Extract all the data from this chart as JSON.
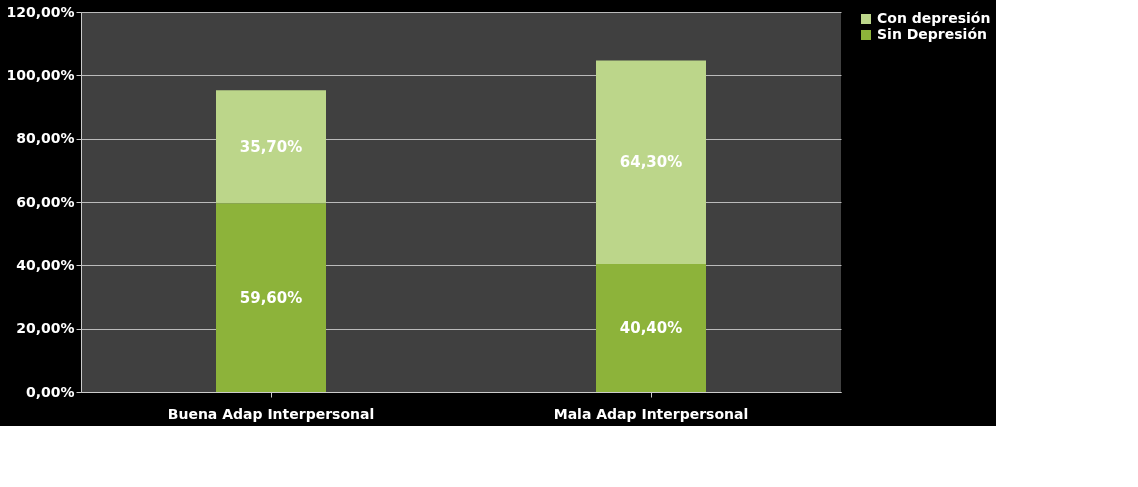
{
  "chart_data": {
    "type": "bar",
    "stacked": true,
    "categories": [
      "Buena Adap Interpersonal",
      "Mala Adap Interpersonal"
    ],
    "series": [
      {
        "name": "Sin Depresión",
        "color": "#8db33a",
        "values": [
          59.6,
          40.4
        ],
        "value_labels": [
          "59,60%",
          "40,40%"
        ]
      },
      {
        "name": "Con depresión",
        "color": "#bcd68a",
        "values": [
          35.7,
          64.3
        ],
        "value_labels": [
          "35,70%",
          "64,30%"
        ]
      }
    ],
    "ylim": [
      0,
      120
    ],
    "yticks": [
      {
        "value": 0,
        "label": "0,00%"
      },
      {
        "value": 20,
        "label": "20,00%"
      },
      {
        "value": 40,
        "label": "40,00%"
      },
      {
        "value": 60,
        "label": "60,00%"
      },
      {
        "value": 80,
        "label": "80,00%"
      },
      {
        "value": 100,
        "label": "100,00%"
      },
      {
        "value": 120,
        "label": "120,00%"
      }
    ],
    "grid": "y",
    "legend": "right"
  }
}
